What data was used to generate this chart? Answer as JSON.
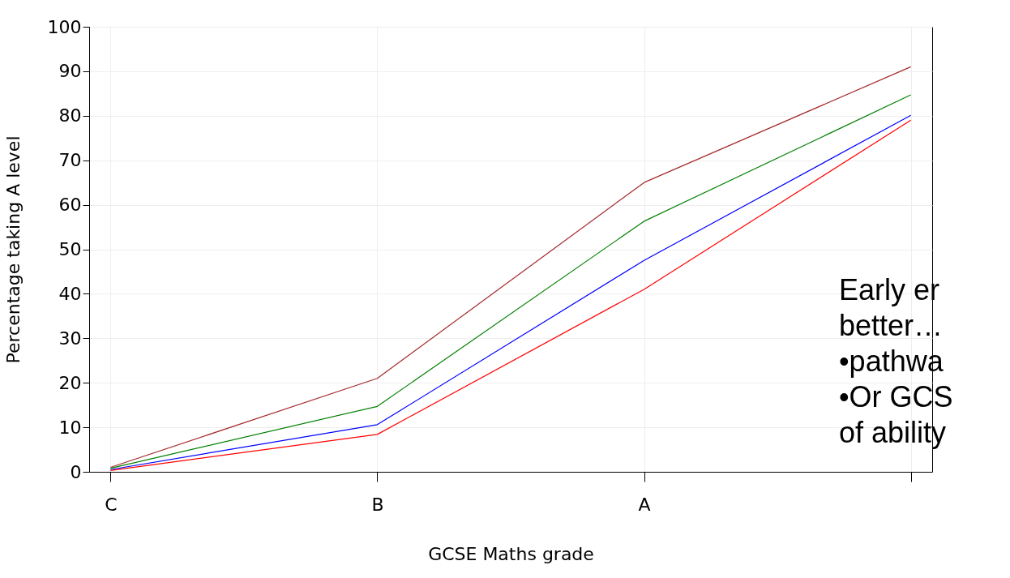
{
  "chart_data": {
    "type": "line",
    "xlabel": "GCSE Maths grade",
    "ylabel": "Percentage taking A level",
    "categories": [
      "C",
      "B",
      "A",
      null
    ],
    "series": [
      {
        "color": "#a52a2a",
        "values": [
          1,
          21,
          65,
          91
        ]
      },
      {
        "color": "#008000",
        "values": [
          0.8,
          14.7,
          56.3,
          84.7
        ]
      },
      {
        "color": "#0000ff",
        "values": [
          0.5,
          10.6,
          47.5,
          80.1
        ]
      },
      {
        "color": "#ff0000",
        "values": [
          0.3,
          8.4,
          41,
          79
        ]
      }
    ],
    "ylim": [
      0,
      100
    ],
    "yticks": [
      0,
      10,
      20,
      30,
      40,
      50,
      60,
      70,
      80,
      90,
      100
    ],
    "grid": true,
    "marker": "none",
    "line_style": "solid",
    "annotations": [
      "Early er\nbetter…\n•pathwa\n•Or GCS\nof ability"
    ]
  }
}
